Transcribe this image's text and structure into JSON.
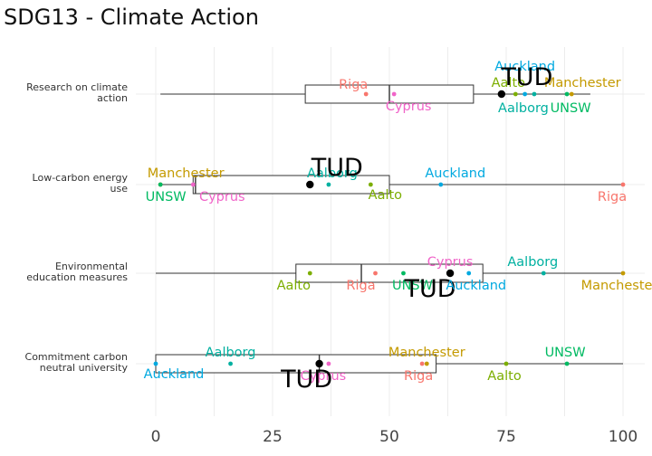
{
  "chart_data": {
    "type": "boxplot",
    "title": "SDG13 - Climate Action",
    "xlabel": "",
    "ylabel": "",
    "xlim": [
      0,
      100
    ],
    "x_ticks": [
      0,
      25,
      50,
      75,
      100
    ],
    "highlight_university": "TUD",
    "colors": {
      "Aalborg": "#00B0A0",
      "Aalto": "#7CAE00",
      "Auckland": "#00A9E0",
      "Cyprus": "#F064C8",
      "Manchester": "#C49A00",
      "Riga": "#F8766D",
      "UNSW": "#00BA62",
      "TUD": "#000000"
    },
    "categories": [
      {
        "label": "Research on climate action",
        "label_lines": [
          "Research on climate",
          "action"
        ],
        "box": {
          "min": 1,
          "q1": 32,
          "median": 50,
          "q3": 68,
          "max": 93
        },
        "points": [
          {
            "name": "Auckland",
            "x": 79
          },
          {
            "name": "Aalto",
            "x": 77
          },
          {
            "name": "Manchester",
            "x": 89
          },
          {
            "name": "Riga",
            "x": 45
          },
          {
            "name": "Cyprus",
            "x": 51
          },
          {
            "name": "Aalborg",
            "x": 81
          },
          {
            "name": "UNSW",
            "x": 88
          },
          {
            "name": "TUD",
            "x": 74
          }
        ]
      },
      {
        "label": "Low-carbon energy use",
        "label_lines": [
          "Low-carbon energy",
          "use"
        ],
        "box": {
          "min": 1,
          "q1": 8,
          "median": 8.5,
          "q3": 50,
          "max": 100
        },
        "points": [
          {
            "name": "Manchester",
            "x": 1
          },
          {
            "name": "UNSW",
            "x": 1
          },
          {
            "name": "Cyprus",
            "x": 8
          },
          {
            "name": "Aalborg",
            "x": 37
          },
          {
            "name": "TUD",
            "x": 33
          },
          {
            "name": "Aalto",
            "x": 46
          },
          {
            "name": "Auckland",
            "x": 61
          },
          {
            "name": "Riga",
            "x": 100
          }
        ]
      },
      {
        "label": "Environmental education measures",
        "label_lines": [
          "Environmental",
          "education measures"
        ],
        "box": {
          "min": 0,
          "q1": 30,
          "median": 44,
          "q3": 70,
          "max": 100
        },
        "points": [
          {
            "name": "Aalto",
            "x": 33
          },
          {
            "name": "Riga",
            "x": 47
          },
          {
            "name": "UNSW",
            "x": 53
          },
          {
            "name": "Cyprus",
            "x": 63
          },
          {
            "name": "TUD",
            "x": 63
          },
          {
            "name": "Auckland",
            "x": 67
          },
          {
            "name": "Aalborg",
            "x": 83
          },
          {
            "name": "Manchester",
            "x": 100
          }
        ]
      },
      {
        "label": "Commitment carbon neutral university",
        "label_lines": [
          "Commitment carbon",
          "neutral university"
        ],
        "box": {
          "min": 0,
          "q1": 0,
          "median": 35,
          "q3": 60,
          "max": 100
        },
        "points": [
          {
            "name": "Auckland",
            "x": 0
          },
          {
            "name": "Aalborg",
            "x": 16
          },
          {
            "name": "Cyprus",
            "x": 37
          },
          {
            "name": "TUD",
            "x": 35
          },
          {
            "name": "Manchester",
            "x": 58
          },
          {
            "name": "Riga",
            "x": 57
          },
          {
            "name": "Aalto",
            "x": 75
          },
          {
            "name": "UNSW",
            "x": 88
          }
        ]
      }
    ]
  }
}
